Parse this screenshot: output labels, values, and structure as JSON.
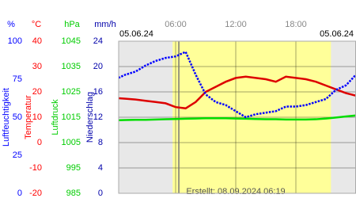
{
  "chart_data": {
    "type": "line",
    "date_left": "05.06.24",
    "date_right": "05.06.24",
    "footer": "Erstellt: 08.09.2024 06:19",
    "x": [
      0,
      1,
      2,
      3,
      4,
      5,
      6,
      7,
      8,
      9,
      10,
      11,
      12,
      13,
      14,
      15,
      16,
      17,
      18,
      19,
      20,
      21,
      22,
      23,
      24
    ],
    "xlim": [
      0,
      24
    ],
    "xticks": [
      {
        "value": 6,
        "label": "06:00"
      },
      {
        "value": 12,
        "label": "12:00"
      },
      {
        "value": 18,
        "label": "18:00"
      }
    ],
    "daylight": [
      5.7,
      21.5
    ],
    "created_marker": 6.32,
    "axes": [
      {
        "id": "y",
        "title": "Luftfeuchtigkeit",
        "unit": "%",
        "color": "#0000ff",
        "lim": [
          0,
          100
        ],
        "ticks": [
          0,
          25,
          50,
          75,
          100
        ]
      },
      {
        "id": "y2",
        "title": "Temperatur",
        "unit": "°C",
        "color": "#ff0000",
        "lim": [
          -20,
          40
        ],
        "ticks": [
          -20,
          -10,
          0,
          10,
          20,
          30,
          40
        ]
      },
      {
        "id": "y3",
        "title": "Luftdruck",
        "unit": "hPa",
        "color": "#00cc00",
        "lim": [
          985,
          1045
        ],
        "ticks": [
          985,
          995,
          1005,
          1015,
          1025,
          1035,
          1045
        ]
      },
      {
        "id": "y4",
        "title": "Niederschlag",
        "unit": "mm/h",
        "color": "#0000aa",
        "lim": [
          0,
          24
        ],
        "ticks": [
          0,
          4,
          8,
          12,
          16,
          20,
          24
        ]
      }
    ],
    "series": [
      {
        "axis": "y3",
        "color": "#00dd00",
        "values": [
          1013.8,
          1013.9,
          1014,
          1014,
          1014.1,
          1014.2,
          1014.3,
          1014.4,
          1014.5,
          1014.6,
          1014.6,
          1014.6,
          1014.5,
          1014.4,
          1014.3,
          1014.2,
          1014.2,
          1014.1,
          1014.1,
          1014.1,
          1014.2,
          1014.5,
          1014.9,
          1015.3,
          1015.7
        ]
      },
      {
        "axis": "y2",
        "color": "#dd0000",
        "values": [
          17.6,
          17.3,
          17,
          16.5,
          16,
          15.5,
          14,
          13.5,
          16,
          20,
          22,
          24,
          25.5,
          26,
          25.5,
          25,
          24,
          26,
          25.5,
          25,
          24,
          22.5,
          21,
          19.5,
          18.5
        ]
      },
      {
        "axis": "y",
        "color": "#0000ff",
        "values": [
          75,
          78,
          80,
          84,
          87,
          89,
          90,
          93,
          78,
          65,
          60,
          58,
          54,
          50,
          52,
          53,
          54,
          57,
          57,
          58,
          60,
          62,
          68,
          71,
          78
        ]
      }
    ]
  }
}
